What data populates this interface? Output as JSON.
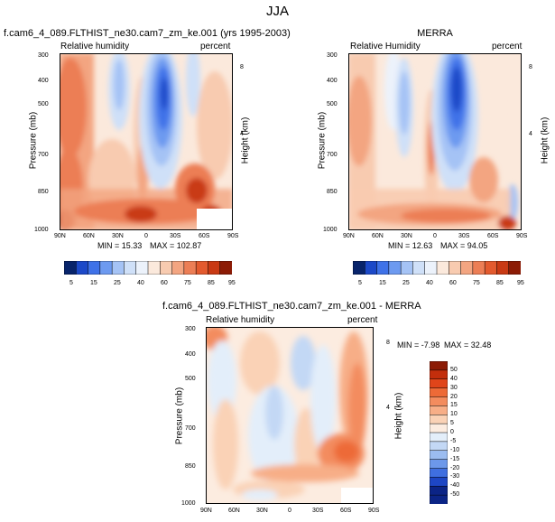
{
  "page_title": "JJA",
  "chart_data": [
    {
      "type": "heatmap",
      "title": "f.cam6_4_089.FLTHIST_ne30.cam7_zm_ke.001 (yrs 1995-2003)",
      "left_label": "Relative humidity",
      "right_label": "percent",
      "x_ticks": [
        "90N",
        "60N",
        "30N",
        "0",
        "30S",
        "60S",
        "90S"
      ],
      "y_ticks": [
        "300",
        "400",
        "500",
        "700",
        "850",
        "1000"
      ],
      "ylabel": "Pressure (mb)",
      "y2label": "Height (km)",
      "y2_ticks": [
        "8",
        "4"
      ],
      "ylim": [
        1000,
        300
      ],
      "xlim": [
        "90N",
        "90S"
      ],
      "min_label": "MIN = 15.33",
      "max_label": "MAX = 102.87",
      "levels": [
        "5",
        "15",
        "25",
        "40",
        "60",
        "75",
        "85",
        "95"
      ]
    },
    {
      "type": "heatmap",
      "title": "MERRA",
      "left_label": "Relative Humidity",
      "right_label": "percent",
      "x_ticks": [
        "90N",
        "60N",
        "30N",
        "0",
        "30S",
        "60S",
        "90S"
      ],
      "y_ticks": [
        "300",
        "400",
        "500",
        "700",
        "850",
        "1000"
      ],
      "ylabel": "Pressure (mb)",
      "y2label": "Height (km)",
      "y2_ticks": [
        "8",
        "4"
      ],
      "ylim": [
        1000,
        300
      ],
      "xlim": [
        "90N",
        "90S"
      ],
      "min_label": "MIN = 12.63",
      "max_label": "MAX = 94.05",
      "levels": [
        "5",
        "15",
        "25",
        "40",
        "60",
        "75",
        "85",
        "95"
      ]
    },
    {
      "type": "heatmap",
      "title": "f.cam6_4_089.FLTHIST_ne30.cam7_zm_ke.001 - MERRA",
      "left_label": "Relative humidity",
      "right_label": "percent",
      "x_ticks": [
        "90N",
        "60N",
        "30N",
        "0",
        "30S",
        "60S",
        "90S"
      ],
      "y_ticks": [
        "300",
        "400",
        "500",
        "700",
        "850",
        "1000"
      ],
      "ylabel": "Pressure (mb)",
      "y2label": "Height (km)",
      "y2_ticks": [
        "8",
        "4"
      ],
      "ylim": [
        1000,
        300
      ],
      "xlim": [
        "90N",
        "90S"
      ],
      "min_label": "MIN = -7.98",
      "max_label": "MAX = 32.48",
      "levels": [
        "50",
        "40",
        "30",
        "20",
        "15",
        "10",
        "5",
        "0",
        "-5",
        "-10",
        "-15",
        "-20",
        "-30",
        "-40",
        "-50"
      ]
    }
  ],
  "colors": {
    "rh_scale": [
      "#08246b",
      "#1c49c8",
      "#3f72e8",
      "#6d9af0",
      "#a5c3f5",
      "#cfe0f8",
      "#ecf2fb",
      "#fbe9dc",
      "#f8cbb0",
      "#f3a581",
      "#ec7e55",
      "#e35a2e",
      "#c93a14",
      "#8c1b05"
    ],
    "diff_scale": [
      "#8c1b05",
      "#c32e0c",
      "#e0451a",
      "#ed6a37",
      "#f38c5e",
      "#f7ae87",
      "#fad2b6",
      "#fcece0",
      "#e3eefa",
      "#c3d8f5",
      "#9bbcf0",
      "#6c98ea",
      "#3f6fe0",
      "#1d46c4",
      "#0b2486"
    ]
  }
}
